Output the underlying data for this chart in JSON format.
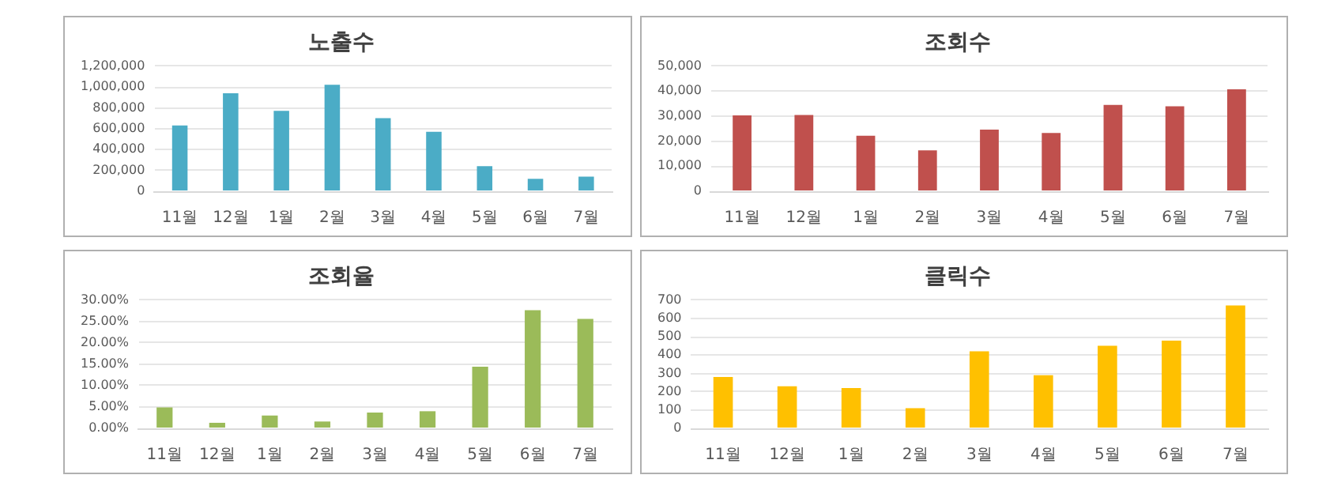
{
  "chart_data": [
    {
      "type": "bar",
      "title": "노출수",
      "categories": [
        "11월",
        "12월",
        "1월",
        "2월",
        "3월",
        "4월",
        "5월",
        "6월",
        "7월"
      ],
      "values": [
        630000,
        940000,
        770000,
        1020000,
        700000,
        570000,
        240000,
        120000,
        140000
      ],
      "color": "#4bacc6",
      "ylim": [
        0,
        1200000
      ],
      "yticks": [
        0,
        {
          "value": 200000,
          "label": "200,000"
        },
        {
          "value": 400000,
          "label": "400,000"
        },
        {
          "value": 600000,
          "label": "600,000"
        },
        {
          "value": 800000,
          "label": "800,000"
        },
        {
          "value": 1000000,
          "label": "1,000,000"
        },
        {
          "value": 1200000,
          "label": "1,200,000"
        }
      ],
      "grid": "y"
    },
    {
      "type": "bar",
      "title": "조회수",
      "categories": [
        "11월",
        "12월",
        "1월",
        "2월",
        "3월",
        "4월",
        "5월",
        "6월",
        "7월"
      ],
      "values": [
        30300,
        30500,
        22200,
        16300,
        24600,
        23300,
        34500,
        33900,
        40700
      ],
      "color": "#c0504d",
      "ylim": [
        0,
        50000
      ],
      "yticks": [
        0,
        {
          "value": 10000,
          "label": "10,000"
        },
        {
          "value": 20000,
          "label": "20,000"
        },
        {
          "value": 30000,
          "label": "30,000"
        },
        {
          "value": 40000,
          "label": "40,000"
        },
        {
          "value": 50000,
          "label": "50,000"
        }
      ],
      "grid": "y"
    },
    {
      "type": "bar",
      "title": "조회율",
      "categories": [
        "11월",
        "12월",
        "1월",
        "2월",
        "3월",
        "4월",
        "5월",
        "6월",
        "7월"
      ],
      "values": [
        4.9,
        1.3,
        3.0,
        1.6,
        3.7,
        4.0,
        14.4,
        27.6,
        25.6
      ],
      "color": "#9bbb59",
      "ylim": [
        0,
        30
      ],
      "yticks": [
        {
          "value": 0,
          "label": "0.00%"
        },
        {
          "value": 5,
          "label": "5.00%"
        },
        {
          "value": 10,
          "label": "10.00%"
        },
        {
          "value": 15,
          "label": "15.00%"
        },
        {
          "value": 20,
          "label": "20.00%"
        },
        {
          "value": 25,
          "label": "25.00%"
        },
        {
          "value": 30,
          "label": "30.00%"
        }
      ],
      "grid": "y"
    },
    {
      "type": "bar",
      "title": "클릭수",
      "categories": [
        "11월",
        "12월",
        "1월",
        "2월",
        "3월",
        "4월",
        "5월",
        "6월",
        "7월"
      ],
      "values": [
        280,
        230,
        220,
        110,
        420,
        290,
        450,
        478,
        670
      ],
      "color": "#ffc000",
      "ylim": [
        0,
        700
      ],
      "yticks": [
        0,
        100,
        200,
        300,
        400,
        500,
        600,
        700
      ],
      "grid": "y"
    }
  ]
}
